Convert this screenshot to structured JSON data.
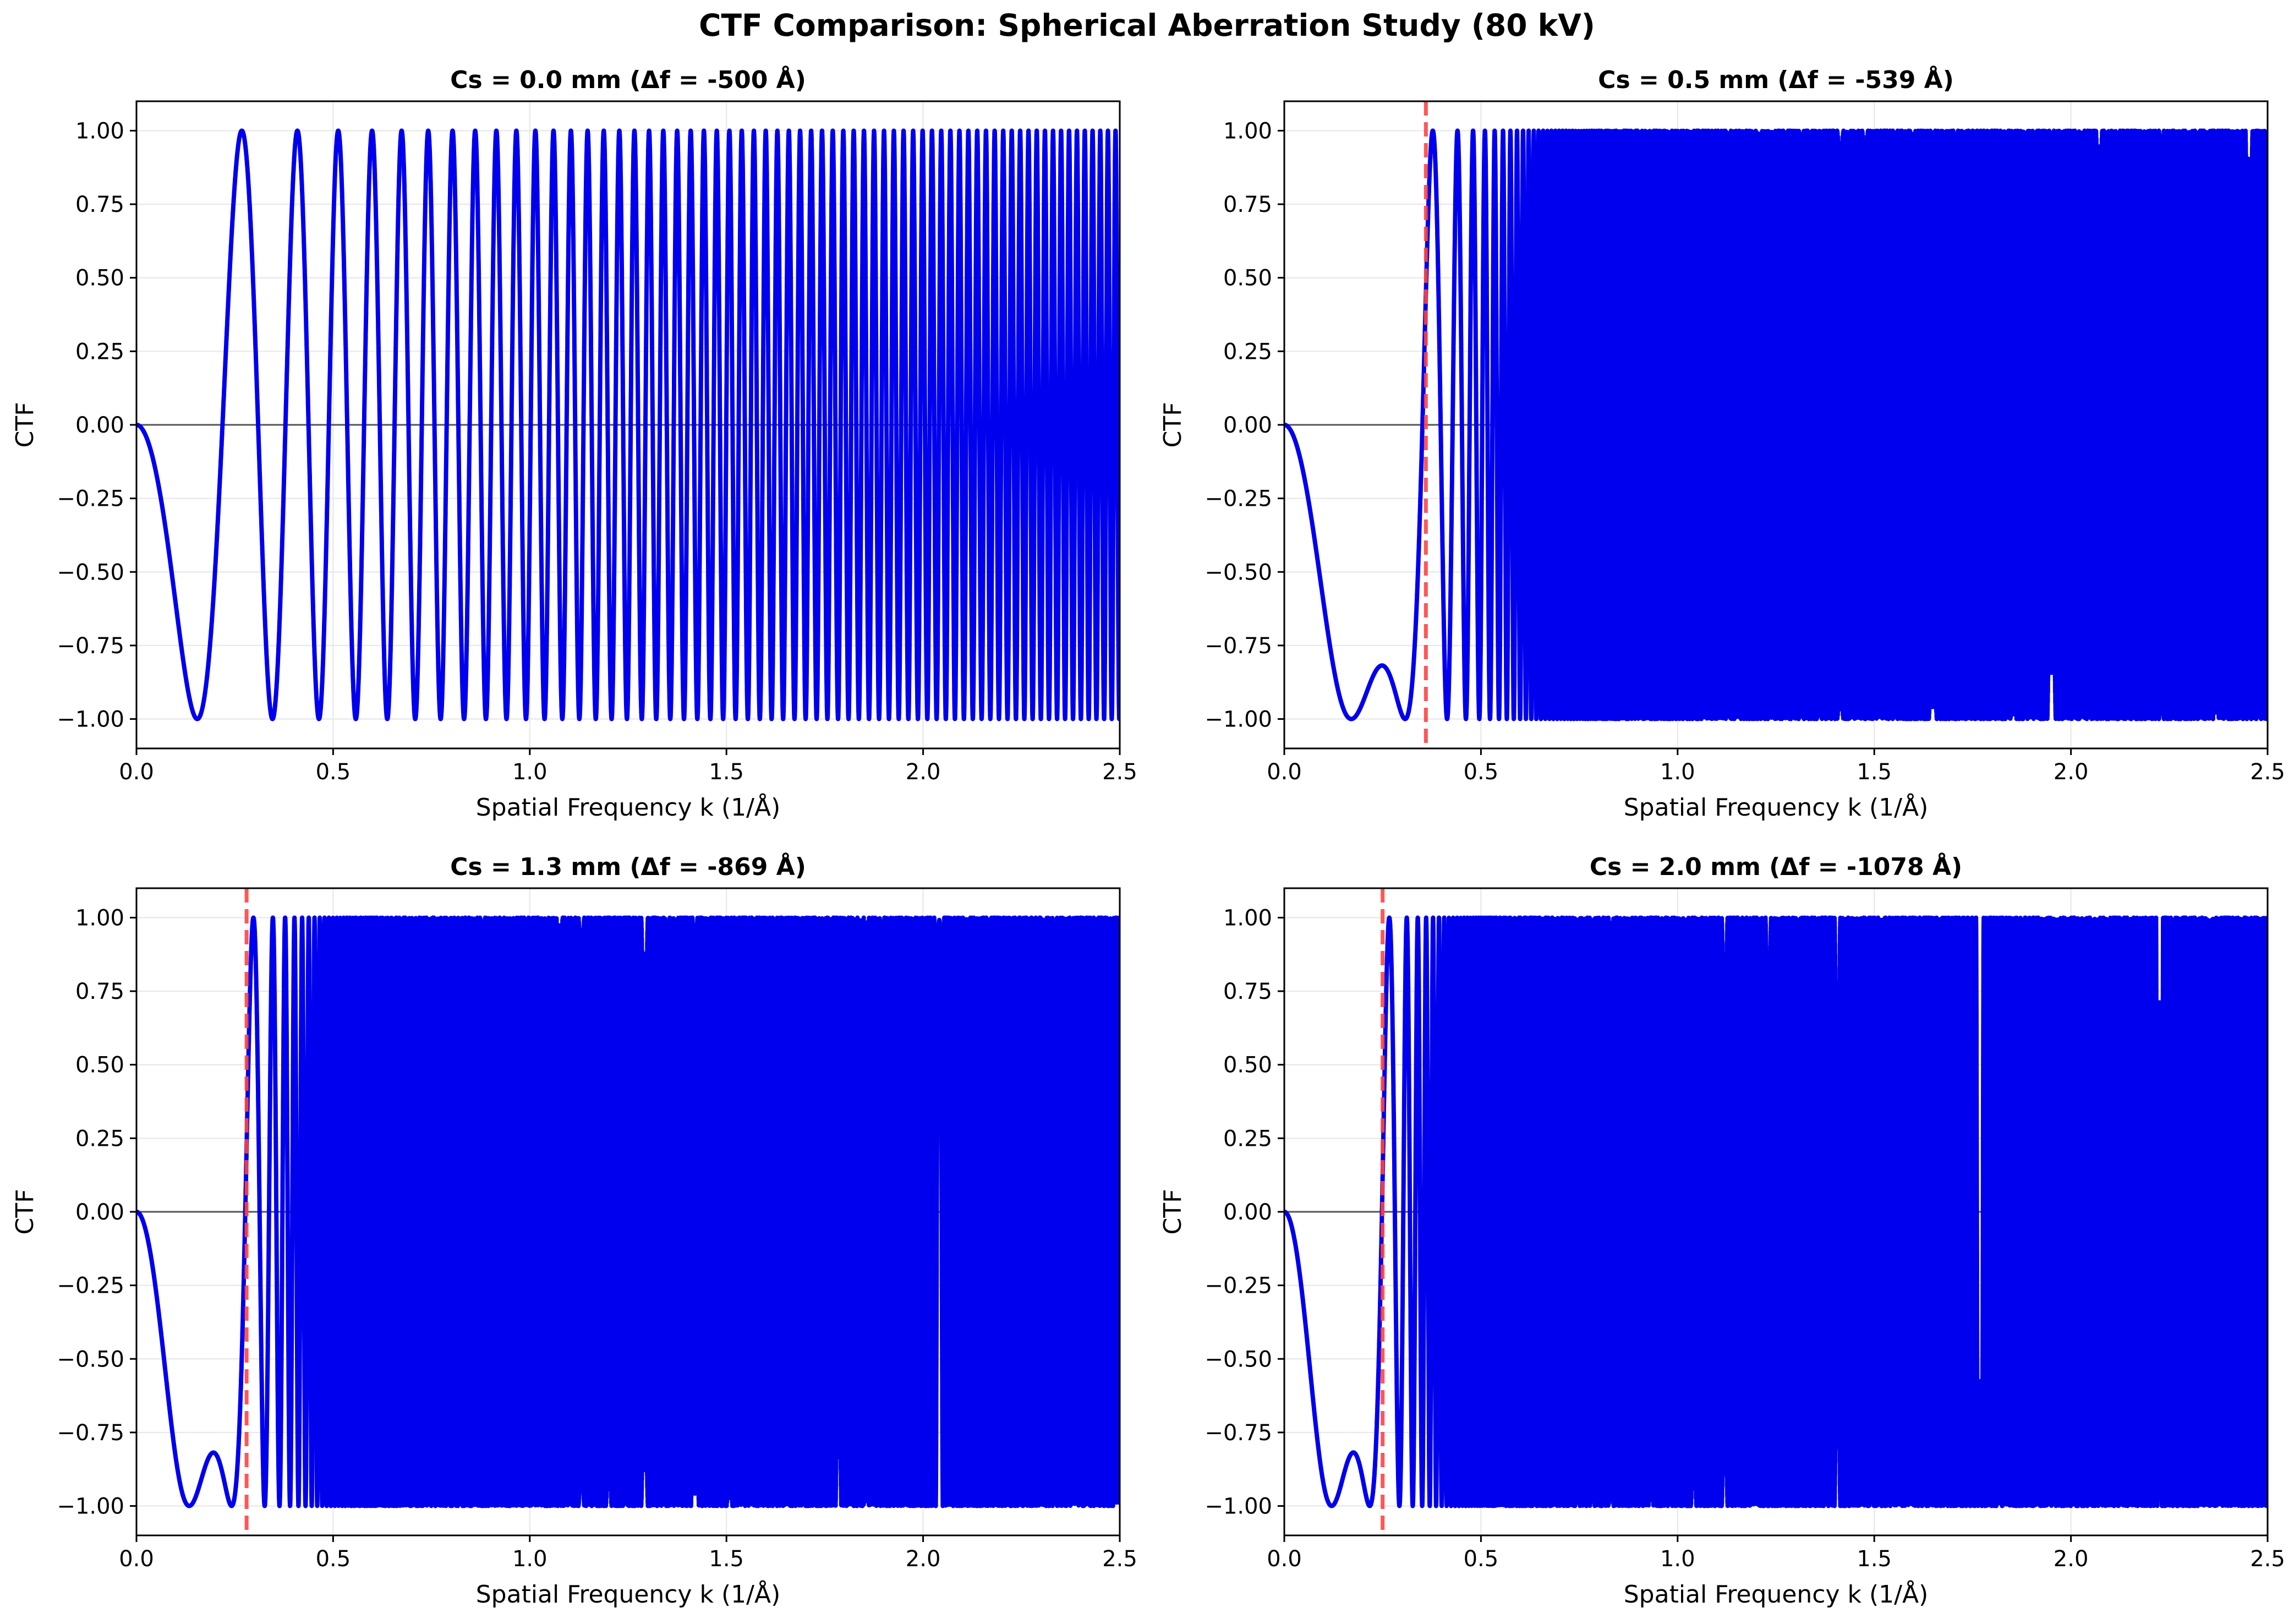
{
  "figure_title": "CTF Comparison: Spherical Aberration Study (80 kV)",
  "colors": {
    "curve": "#0000ee",
    "scherzer_line": "#ff4444",
    "zero_line": "#555555",
    "grid": "#e6e6e6"
  },
  "chart_data": [
    {
      "type": "line",
      "title": "Cs = 0.0 mm (Δf = -500 Å)",
      "xlabel": "Spatial Frequency k (1/Å)",
      "ylabel": "CTF",
      "xlim": [
        0,
        2.5
      ],
      "ylim": [
        -1.1,
        1.1
      ],
      "xticks": [
        "0.0",
        "0.5",
        "1.0",
        "1.5",
        "2.0",
        "2.5"
      ],
      "yticks": [
        "−1.00",
        "−0.75",
        "−0.50",
        "−0.25",
        "0.00",
        "0.25",
        "0.50",
        "0.75",
        "1.00"
      ],
      "grid": true,
      "series": [
        {
          "name": "CTF",
          "cs_mm": 0.0,
          "defocus_A": -500
        }
      ],
      "scherzer_k": null
    },
    {
      "type": "line",
      "title": "Cs = 0.5 mm (Δf = -539 Å)",
      "xlabel": "Spatial Frequency k (1/Å)",
      "ylabel": "CTF",
      "xlim": [
        0,
        2.5
      ],
      "ylim": [
        -1.1,
        1.1
      ],
      "xticks": [
        "0.0",
        "0.5",
        "1.0",
        "1.5",
        "2.0",
        "2.5"
      ],
      "yticks": [
        "−1.00",
        "−0.75",
        "−0.50",
        "−0.25",
        "0.00",
        "0.25",
        "0.50",
        "0.75",
        "1.00"
      ],
      "grid": true,
      "series": [
        {
          "name": "CTF",
          "cs_mm": 0.5,
          "defocus_A": -539
        }
      ],
      "scherzer_k": 0.36
    },
    {
      "type": "line",
      "title": "Cs = 1.3 mm (Δf = -869 Å)",
      "xlabel": "Spatial Frequency k (1/Å)",
      "ylabel": "CTF",
      "xlim": [
        0,
        2.5
      ],
      "ylim": [
        -1.1,
        1.1
      ],
      "xticks": [
        "0.0",
        "0.5",
        "1.0",
        "1.5",
        "2.0",
        "2.5"
      ],
      "yticks": [
        "−1.00",
        "−0.75",
        "−0.50",
        "−0.25",
        "0.00",
        "0.25",
        "0.50",
        "0.75",
        "1.00"
      ],
      "grid": true,
      "series": [
        {
          "name": "CTF",
          "cs_mm": 1.3,
          "defocus_A": -869
        }
      ],
      "scherzer_k": 0.28
    },
    {
      "type": "line",
      "title": "Cs = 2.0 mm (Δf = -1078 Å)",
      "xlabel": "Spatial Frequency k (1/Å)",
      "ylabel": "CTF",
      "xlim": [
        0,
        2.5
      ],
      "ylim": [
        -1.1,
        1.1
      ],
      "xticks": [
        "0.0",
        "0.5",
        "1.0",
        "1.5",
        "2.0",
        "2.5"
      ],
      "yticks": [
        "−1.00",
        "−0.75",
        "−0.50",
        "−0.25",
        "0.00",
        "0.25",
        "0.50",
        "0.75",
        "1.00"
      ],
      "grid": true,
      "series": [
        {
          "name": "CTF",
          "cs_mm": 2.0,
          "defocus_A": -1078
        }
      ],
      "scherzer_k": 0.25
    }
  ]
}
